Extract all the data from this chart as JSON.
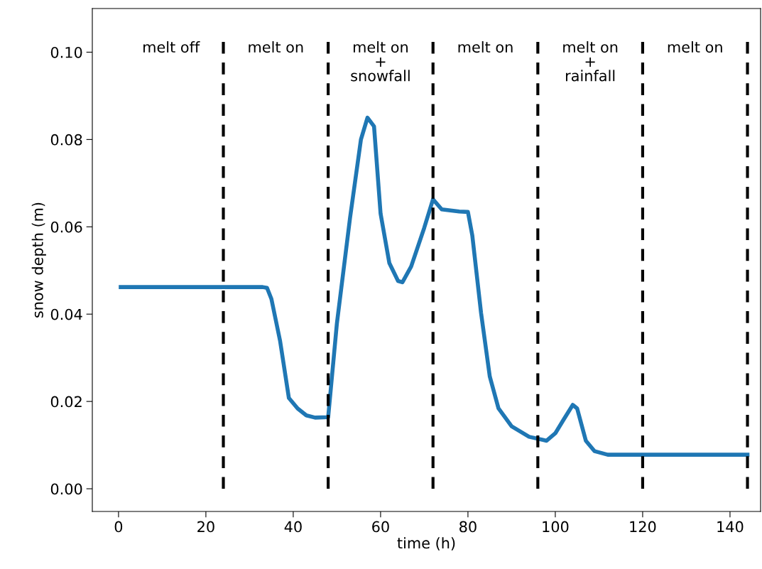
{
  "chart_data": {
    "type": "line",
    "xlabel": "time (h)",
    "ylabel": "snow depth (m)",
    "xlim": [
      -6,
      147
    ],
    "ylim": [
      -0.0052,
      0.11
    ],
    "xticks": [
      0,
      20,
      40,
      60,
      80,
      100,
      120,
      140
    ],
    "yticks": [
      {
        "value": 0,
        "label": "0.00"
      },
      {
        "value": 0.02,
        "label": "0.02"
      },
      {
        "value": 0.04,
        "label": "0.04"
      },
      {
        "value": 0.06,
        "label": "0.06"
      },
      {
        "value": 0.08,
        "label": "0.08"
      },
      {
        "value": 0.1,
        "label": "0.10"
      }
    ],
    "series": [
      {
        "color": "#1f77b4",
        "x": [
          0.5,
          10,
          20,
          30,
          33,
          34,
          35,
          37,
          39,
          41,
          43,
          45,
          48,
          50,
          53,
          55.5,
          57,
          58.5,
          60,
          62,
          64,
          65,
          67,
          70,
          72,
          74,
          78,
          80,
          81,
          83,
          85,
          87,
          90,
          94,
          98,
          100,
          102,
          104,
          105,
          107,
          109,
          112,
          120,
          130,
          144
        ],
        "values": [
          0.0462,
          0.0462,
          0.0462,
          0.0462,
          0.0462,
          0.046,
          0.0435,
          0.0338,
          0.0208,
          0.0184,
          0.0168,
          0.0163,
          0.0164,
          0.0379,
          0.062,
          0.08,
          0.085,
          0.083,
          0.063,
          0.0517,
          0.0476,
          0.0473,
          0.0509,
          0.0598,
          0.0663,
          0.064,
          0.0635,
          0.0634,
          0.058,
          0.0403,
          0.0257,
          0.0184,
          0.0143,
          0.0119,
          0.011,
          0.0127,
          0.016,
          0.0192,
          0.0184,
          0.011,
          0.0086,
          0.0078,
          0.0078,
          0.0078,
          0.0078
        ]
      }
    ],
    "ref_lines": [
      {
        "axis": "x",
        "value": 24,
        "color": "#000000",
        "line_style": "dashed"
      },
      {
        "axis": "x",
        "value": 48,
        "color": "#000000",
        "line_style": "dashed"
      },
      {
        "axis": "x",
        "value": 72,
        "color": "#000000",
        "line_style": "dashed"
      },
      {
        "axis": "x",
        "value": 96,
        "color": "#000000",
        "line_style": "dashed"
      },
      {
        "axis": "x",
        "value": 120,
        "color": "#000000",
        "line_style": "dashed"
      },
      {
        "axis": "x",
        "value": 144,
        "color": "#000000",
        "line_style": "dashed"
      }
    ],
    "annotations": [
      "melt off",
      "melt on",
      "melt on\n+\nsnowfall",
      "melt on",
      "melt on\n+\nrainfall",
      "melt on"
    ],
    "grid": false,
    "legend": false,
    "line_style": "solid",
    "marker": "none"
  }
}
